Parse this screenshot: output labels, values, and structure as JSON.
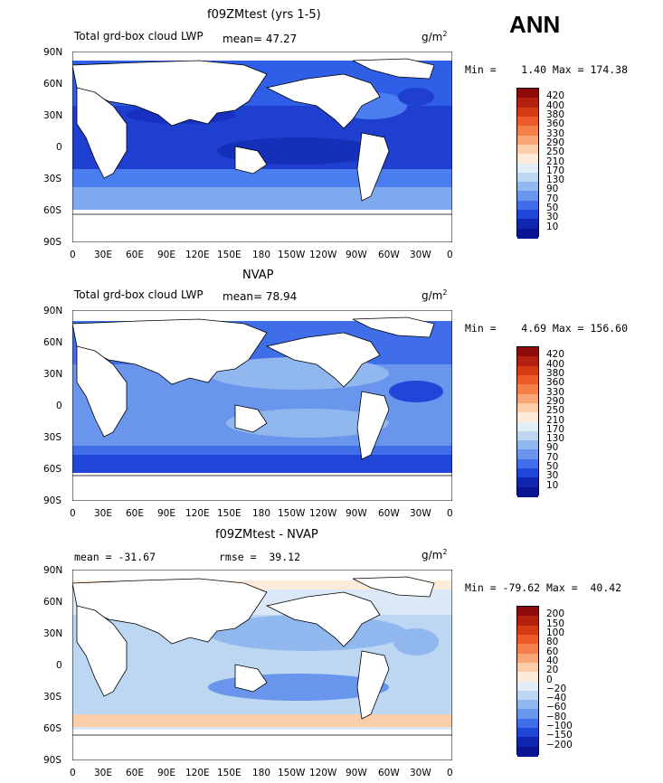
{
  "header": {
    "ann": "ANN"
  },
  "panels": [
    {
      "id": "top",
      "title": "f09ZMtest (yrs 1-5)",
      "left_label": "Total grd-box cloud LWP",
      "mean_label": "mean=  47.27",
      "units": "g/m",
      "units_sup": "2",
      "minmax": "Min =    1.40 Max = 174.38",
      "colorbar": {
        "labels": [
          "420",
          "400",
          "380",
          "360",
          "330",
          "290",
          "250",
          "210",
          "170",
          "130",
          "90",
          "70",
          "50",
          "30",
          "10"
        ],
        "colors": [
          "#8c0a0a",
          "#b3200f",
          "#d63a14",
          "#ec5a2a",
          "#f3804a",
          "#f8a678",
          "#fbcda8",
          "#fdebd9",
          "#e2edf8",
          "#bdd7f2",
          "#91b8ee",
          "#6995ec",
          "#3f6ee8",
          "#1f46d6",
          "#0f26b0",
          "#0a1390"
        ]
      }
    },
    {
      "id": "mid",
      "title": "NVAP",
      "left_label": "Total grd-box cloud LWP",
      "mean_label": "mean=  78.94",
      "units": "g/m",
      "units_sup": "2",
      "minmax": "Min =    4.69 Max = 156.60",
      "colorbar": {
        "labels": [
          "420",
          "400",
          "380",
          "360",
          "330",
          "290",
          "250",
          "210",
          "170",
          "130",
          "90",
          "70",
          "50",
          "30",
          "10"
        ],
        "colors": [
          "#8c0a0a",
          "#b3200f",
          "#d63a14",
          "#ec5a2a",
          "#f3804a",
          "#f8a678",
          "#fbcda8",
          "#fdebd9",
          "#e2edf8",
          "#bdd7f2",
          "#91b8ee",
          "#6995ec",
          "#3f6ee8",
          "#1f46d6",
          "#0f26b0",
          "#0a1390"
        ]
      }
    },
    {
      "id": "bot",
      "title": "f09ZMtest - NVAP",
      "left_label": "mean = -31.67",
      "mean_label": "rmse =  39.12",
      "units": "g/m",
      "units_sup": "2",
      "minmax": "Min = -79.62 Max =  40.42",
      "colorbar": {
        "labels": [
          "200",
          "150",
          "100",
          "80",
          "60",
          "40",
          "20",
          "0",
          "−20",
          "−40",
          "−60",
          "−80",
          "−100",
          "−150",
          "−200"
        ],
        "colors": [
          "#8c0a0a",
          "#b3200f",
          "#d63a14",
          "#ec5a2a",
          "#f3804a",
          "#f8a678",
          "#fbcda8",
          "#fdebd9",
          "#e2edf8",
          "#bdd7f2",
          "#91b8ee",
          "#6995ec",
          "#3f6ee8",
          "#1f46d6",
          "#0f26b0",
          "#0a1390"
        ]
      }
    }
  ],
  "axes": {
    "lat_labels": [
      "90N",
      "60N",
      "30N",
      "0",
      "30S",
      "60S",
      "90S"
    ],
    "lon_labels": [
      "0",
      "30E",
      "60E",
      "90E",
      "120E",
      "150E",
      "180",
      "150W",
      "120W",
      "90W",
      "60W",
      "30W",
      "0"
    ]
  }
}
